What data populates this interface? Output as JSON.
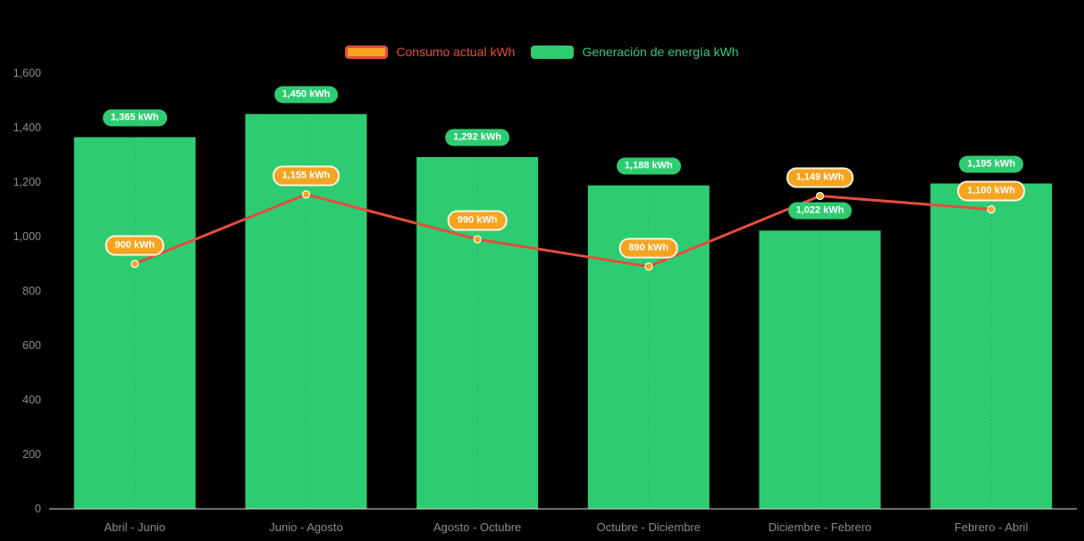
{
  "colors": {
    "background": "#000000",
    "consumo_line": "#e74c3c",
    "consumo_point": "#f6a41f",
    "generacion_bar": "#2ecc71",
    "axis_text": "#8c8c8c",
    "axis_line": "#dcdcdc",
    "pill_text": "#ffffff"
  },
  "legend": {
    "items": [
      {
        "label": "Consumo actual kWh"
      },
      {
        "label": "Generación de energía kWh"
      }
    ],
    "position": "top-center"
  },
  "chart_data": {
    "type": "bar+line",
    "title": "",
    "xlabel": "",
    "ylabel": "",
    "categories": [
      "Abril - Junio",
      "Junio - Agosto",
      "Agosto - Octubre",
      "Octubre - Diciembre",
      "Diciembre - Febrero",
      "Febrero - Abril"
    ],
    "series": [
      {
        "name": "Consumo actual kWh",
        "type": "line",
        "color": "#e74c3c",
        "point_color": "#f6a41f",
        "values": [
          900,
          1155,
          990,
          890,
          1149,
          1100
        ],
        "labels": [
          "900 kWh",
          "1,155 kWh",
          "990 kWh",
          "890 kWh",
          "1,149 kWh",
          "1,100 kWh"
        ],
        "label_suffix": " kWh"
      },
      {
        "name": "Generación de energía kWh",
        "type": "bar",
        "color": "#2ecc71",
        "values": [
          1365,
          1450,
          1292,
          1188,
          1022,
          1195
        ],
        "labels": [
          "1,365 kWh",
          "1,450 kWh",
          "1,292 kWh",
          "1,188 kWh",
          "1,022 kWh",
          "1,195 kWh"
        ],
        "label_suffix": " kWh"
      }
    ],
    "ylim": [
      0,
      1600
    ],
    "yticks": [
      0,
      200,
      400,
      600,
      800,
      1000,
      1200,
      1400,
      1600
    ],
    "ytick_labels": [
      "0",
      "200",
      "400",
      "600",
      "800",
      "1,000",
      "1,200",
      "1,400",
      "1,600"
    ],
    "grid": "vertical-dotted-at-category-centers",
    "legend_position": "top"
  }
}
